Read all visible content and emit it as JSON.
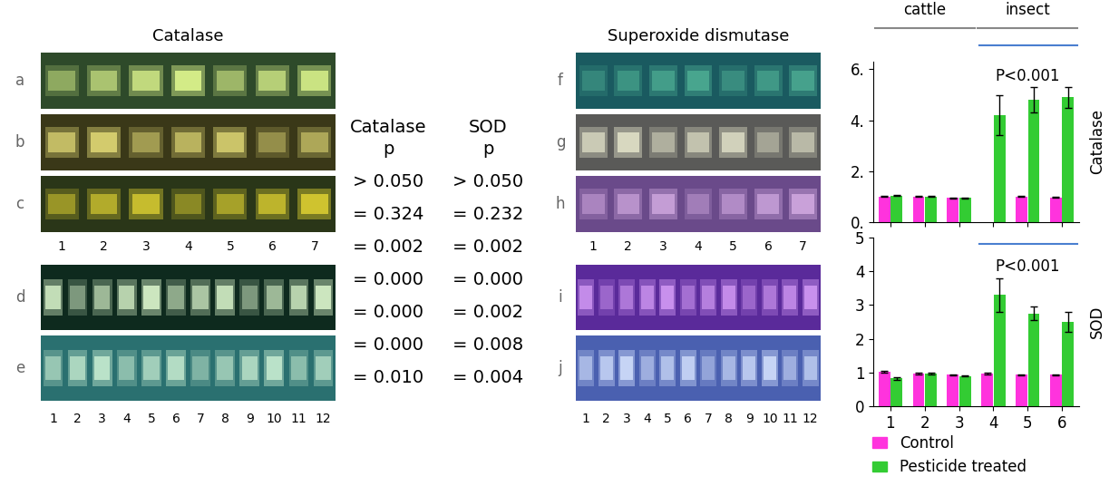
{
  "gels": [
    {
      "title": "Catalase",
      "blocks": [
        {
          "rows": [
            "a",
            "b",
            "c"
          ],
          "lanes": [
            "1",
            "2",
            "3",
            "4",
            "5",
            "6",
            "7"
          ]
        },
        {
          "rows": [
            "d",
            "e"
          ],
          "lanes": [
            "1",
            "2",
            "3",
            "4",
            "5",
            "6",
            "7",
            "8",
            "9",
            "10",
            "11",
            "12"
          ]
        }
      ]
    },
    {
      "title": "Superoxide dismutase",
      "blocks": [
        {
          "rows": [
            "f",
            "g",
            "h"
          ],
          "lanes": [
            "1",
            "2",
            "3",
            "4",
            "5",
            "6",
            "7"
          ]
        },
        {
          "rows": [
            "i",
            "j"
          ],
          "lanes": [
            "1",
            "2",
            "3",
            "4",
            "5",
            "6",
            "7",
            "8",
            "9",
            "10",
            "11",
            "12"
          ]
        }
      ]
    }
  ],
  "p_values": [
    {
      "header": [
        "Catalase",
        "p"
      ],
      "rows": [
        "> 0.050",
        "= 0.324",
        "= 0.002",
        "= 0.000",
        "= 0.000",
        "= 0.000",
        "= 0.010"
      ]
    },
    {
      "header": [
        "SOD",
        "p"
      ],
      "rows": [
        "> 0.050",
        "= 0.232",
        "= 0.002",
        "= 0.000",
        "= 0.002",
        "= 0.008",
        "= 0.004"
      ]
    }
  ],
  "chart_data": [
    {
      "type": "bar",
      "y_label": "Catalase",
      "categories": [
        "1",
        "2",
        "3",
        "4",
        "5",
        "6"
      ],
      "groups": [
        {
          "label": "cattle",
          "from": "1",
          "to": "3"
        },
        {
          "label": "insect",
          "from": "4",
          "to": "6"
        }
      ],
      "significance": {
        "label": "P<0.001",
        "from": "4",
        "to": "6"
      },
      "series": [
        {
          "name": "Control",
          "color": "#ff33dd",
          "values": [
            1.0,
            1.0,
            0.95,
            null,
            1.0,
            0.97
          ],
          "errors": [
            0.02,
            0.02,
            0.02,
            null,
            0.02,
            0.02
          ]
        },
        {
          "name": "Pesticide treated",
          "color": "#33cc33",
          "values": [
            1.05,
            1.0,
            0.95,
            4.2,
            4.8,
            4.9
          ],
          "errors": [
            0.03,
            0.02,
            0.02,
            0.8,
            0.5,
            0.4
          ]
        }
      ],
      "ylim": [
        0,
        6.3
      ],
      "yticks": [
        {
          "value": 0,
          "label": "0."
        },
        {
          "value": 2,
          "label": "2."
        },
        {
          "value": 4,
          "label": "4."
        },
        {
          "value": 6,
          "label": "6."
        }
      ],
      "tick_labels": "y"
    },
    {
      "type": "bar",
      "y_label": "SOD",
      "categories": [
        "1",
        "2",
        "3",
        "4",
        "5",
        "6"
      ],
      "significance": {
        "label": "P<0.001",
        "from": "4",
        "to": "6"
      },
      "series": [
        {
          "name": "Control",
          "color": "#ff33dd",
          "values": [
            1.02,
            0.97,
            0.93,
            0.97,
            0.93,
            0.93
          ],
          "errors": [
            0.02,
            0.02,
            0.02,
            0.02,
            0.02,
            0.02
          ]
        },
        {
          "name": "Pesticide treated",
          "color": "#33cc33",
          "values": [
            0.82,
            0.97,
            0.9,
            3.3,
            2.75,
            2.5
          ],
          "errors": [
            0.03,
            0.02,
            0.02,
            0.5,
            0.2,
            0.3
          ]
        }
      ],
      "ylim": [
        0,
        5
      ],
      "yticks": [
        0,
        1,
        2,
        3,
        4,
        5
      ],
      "legend": "lower left"
    }
  ]
}
